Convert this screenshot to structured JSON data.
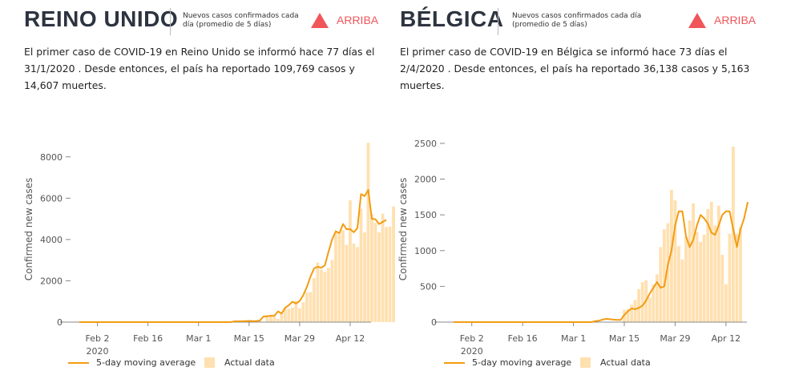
{
  "panels": [
    {
      "country": "REINO UNIDO",
      "subheader": "Nuevos casos confirmados cada día (promedio de 5 días)",
      "trend_label": "ARRIBA",
      "description": "El primer caso de COVID-19 en Reino Unido se informó hace 77 días el 31/1/2020 . Desde entonces, el país ha reportado 109,769 casos y 14,607 muertes."
    },
    {
      "country": "BÉLGICA",
      "subheader": "Nuevos casos confirmados cada día (promedio de 5 días)",
      "trend_label": "ARRIBA",
      "description": "El primer caso de COVID-19 en Bélgica se informó hace 73 días el 2/4/2020 . Desde entonces, el país ha reportado 36,138 casos y 5,163 muertes."
    }
  ],
  "colors": {
    "line": "#f39c12",
    "bar": "#ffe0b0",
    "trend": "#f0555a",
    "axis": "#888888"
  },
  "chart_data": [
    {
      "type": "bar",
      "title": "",
      "xlabel": "",
      "ylabel": "Confirmed new cases",
      "x_start": "2020-01-26",
      "x_ticks": [
        {
          "day": 7,
          "label": "Feb 2",
          "sub": "2020"
        },
        {
          "day": 21,
          "label": "Feb 16"
        },
        {
          "day": 35,
          "label": "Mar 1"
        },
        {
          "day": 49,
          "label": "Mar 15"
        },
        {
          "day": 63,
          "label": "Mar 29"
        },
        {
          "day": 77,
          "label": "Apr 12"
        }
      ],
      "xlim": [
        0,
        81
      ],
      "ylim": [
        0,
        9000
      ],
      "y_ticks": [
        0,
        2000,
        4000,
        6000,
        8000
      ],
      "y_tick_labels": [
        "0",
        "2000",
        "4000",
        "6000",
        "8000"
      ],
      "bar_start_day": 45,
      "actual": [
        6,
        0,
        13,
        48,
        87,
        41,
        64,
        74,
        0,
        343,
        342,
        251,
        152,
        407,
        680,
        647,
        706,
        1035,
        665,
        967,
        1427,
        1452,
        2129,
        2885,
        2546,
        2433,
        2619,
        3009,
        4324,
        4244,
        4450,
        3735,
        5903,
        3802,
        3634,
        5491,
        4344,
        8681,
        5233,
        4806,
        4342,
        5252,
        4603,
        4617,
        5599
      ],
      "avg_start_day": 45,
      "average": [
        40,
        40,
        40,
        50,
        60,
        50,
        50,
        80,
        270,
        280,
        310,
        300,
        520,
        420,
        700,
        820,
        990,
        900,
        1020,
        1300,
        1700,
        2200,
        2600,
        2680,
        2630,
        2750,
        3400,
        4000,
        4400,
        4300,
        4750,
        4500,
        4500,
        4350,
        4550,
        6200,
        6100,
        6400,
        5000,
        4980,
        4750,
        4850,
        4950
      ],
      "series": [
        {
          "name": "5-day moving average"
        },
        {
          "name": "Actual data"
        }
      ]
    },
    {
      "type": "bar",
      "title": "",
      "xlabel": "",
      "ylabel": "Confirmed new cases",
      "x_start": "2020-01-26",
      "x_ticks": [
        {
          "day": 7,
          "label": "Feb 2",
          "sub": "2020"
        },
        {
          "day": 21,
          "label": "Feb 16"
        },
        {
          "day": 35,
          "label": "Mar 1"
        },
        {
          "day": 49,
          "label": "Mar 15"
        },
        {
          "day": 63,
          "label": "Mar 29"
        },
        {
          "day": 77,
          "label": "Apr 12"
        }
      ],
      "xlim": [
        0,
        81
      ],
      "ylim": [
        0,
        2600
      ],
      "y_ticks": [
        0,
        500,
        1000,
        1500,
        2000,
        2500
      ],
      "y_tick_labels": [
        "0",
        "500",
        "1000",
        "1500",
        "2000",
        "2500"
      ],
      "bar_start_day": 49,
      "actual": [
        172,
        185,
        243,
        309,
        462,
        558,
        586,
        342,
        526,
        668,
        1049,
        1298,
        1384,
        1850,
        1702,
        1063,
        876,
        1189,
        1422,
        1661,
        1260,
        1123,
        1223,
        1580,
        1684,
        1351,
        1629,
        942,
        530,
        1236,
        2454,
        1236,
        1329
      ],
      "avg_start_day": 41,
      "average": [
        15,
        20,
        35,
        45,
        40,
        35,
        30,
        30,
        100,
        150,
        190,
        180,
        200,
        230,
        300,
        400,
        480,
        560,
        480,
        500,
        800,
        1000,
        1350,
        1550,
        1550,
        1200,
        1050,
        1150,
        1350,
        1500,
        1450,
        1380,
        1250,
        1220,
        1350,
        1500,
        1550,
        1550,
        1300,
        1050,
        1300,
        1450,
        1680
      ],
      "series": [
        {
          "name": "5-day moving average"
        },
        {
          "name": "Actual data"
        }
      ]
    }
  ]
}
